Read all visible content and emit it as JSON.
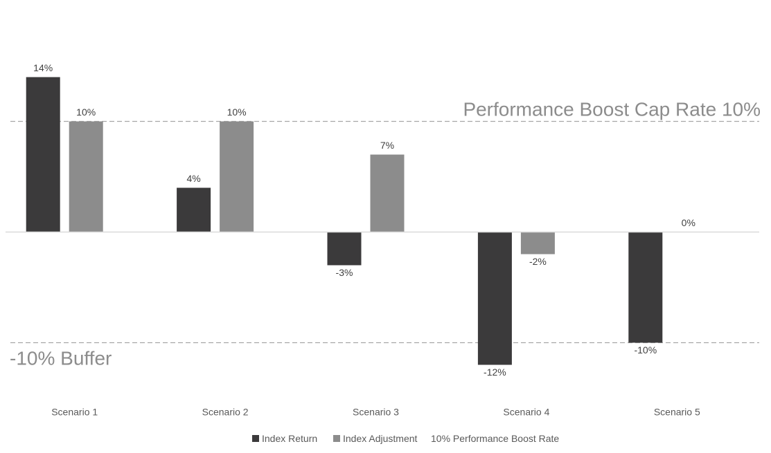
{
  "chart_data": {
    "type": "bar",
    "categories": [
      "Scenario 1",
      "Scenario 2",
      "Scenario 3",
      "Scenario 4",
      "Scenario 5"
    ],
    "series": [
      {
        "name": "Index Return",
        "color": "#3b3a3b",
        "values": [
          14,
          4,
          -3,
          -12,
          -10
        ],
        "labels": [
          "14%",
          "4%",
          "-3%",
          "-12%",
          "-10%"
        ]
      },
      {
        "name": "Index Adjustment",
        "color": "#8c8c8c",
        "values": [
          10,
          10,
          7,
          -2,
          0
        ],
        "labels": [
          "10%",
          "10%",
          "7%",
          "-2%",
          "0%"
        ]
      }
    ],
    "reference_lines": [
      {
        "value": 10,
        "label": "Performance Boost Cap Rate 10%",
        "color": "#a6a6a6",
        "style": "dashed"
      },
      {
        "value": -10,
        "label": "-10% Buffer",
        "color": "#a6a6a6",
        "style": "dashed"
      }
    ],
    "legend": {
      "placement": "bottom",
      "entries": [
        "Index Return",
        "Index Adjustment",
        "10% Performance Boost Rate"
      ]
    },
    "ylim": [
      -14,
      14
    ],
    "grid": false
  }
}
